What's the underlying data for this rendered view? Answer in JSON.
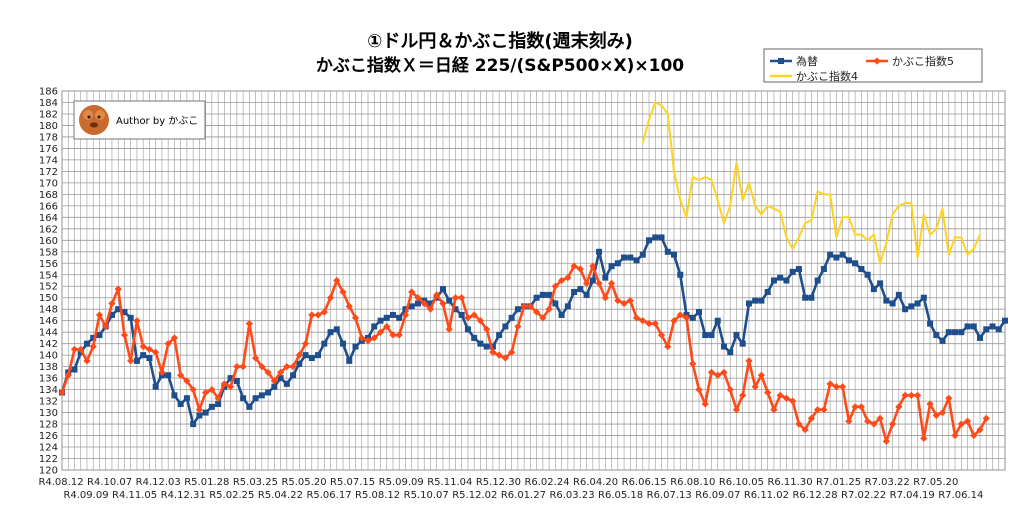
{
  "title_line1": "①ドル円＆かぶこ指数(週末刻み)",
  "title_line2": "かぶこ指数Ｘ＝日経 225/(S&P500×X)×100",
  "author_label": "Author by かぶこ",
  "colors": {
    "usdjpy": "#1f4e8c",
    "kabuko5": "#ff4a1a",
    "kabuko4": "#ffd21f",
    "grid": "#9a9a9a"
  },
  "chart_data": {
    "type": "line",
    "ylim": [
      120,
      186
    ],
    "yticks": [
      120,
      122,
      124,
      126,
      128,
      130,
      132,
      134,
      136,
      138,
      140,
      142,
      144,
      146,
      148,
      150,
      152,
      154,
      156,
      158,
      160,
      162,
      164,
      166,
      168,
      170,
      172,
      174,
      176,
      178,
      180,
      182,
      184,
      186
    ],
    "xlabels_upper": [
      "R4.08.12",
      "R4.10.07",
      "R4.12.03",
      "R5.01.28",
      "R5.03.25",
      "R5.05.20",
      "R5.07.15",
      "R5.09.09",
      "R5.11.04",
      "R5.12.30",
      "R6.02.24",
      "R6.04.20",
      "R6.06.15",
      "R6.08.10",
      "R6.10.05",
      "R6.11.30",
      "R7.01.25",
      "R7.03.22",
      "R7.05.20"
    ],
    "xlabels_lower": [
      "R4.09.09",
      "R4.11.05",
      "R4.12.31",
      "R5.02.25",
      "R5.04.22",
      "R5.06.17",
      "R5.08.12",
      "R5.10.07",
      "R5.12.02",
      "R6.01.27",
      "R6.03.23",
      "R6.05.18",
      "R6.07.13",
      "R6.09.07",
      "R6.11.02",
      "R6.12.28",
      "R7.02.22",
      "R7.04.19",
      "R7.06.14"
    ],
    "legend": [
      "為替",
      "かぶこ指数5",
      "かぶこ指数4"
    ],
    "series": [
      {
        "name": "為替",
        "values": [
          133.5,
          137.0,
          137.5,
          140.5,
          142.0,
          143.0,
          143.5,
          145.0,
          147.0,
          148.0,
          147.5,
          146.5,
          139.0,
          140.0,
          139.5,
          134.5,
          136.5,
          136.5,
          133.0,
          131.5,
          132.5,
          128.0,
          129.5,
          130.0,
          131.0,
          131.5,
          134.5,
          136.0,
          135.5,
          132.5,
          131.0,
          132.5,
          133.0,
          133.5,
          134.5,
          136.0,
          135.0,
          136.5,
          138.5,
          140.0,
          139.5,
          140.0,
          142.0,
          144.0,
          144.5,
          142.0,
          139.0,
          141.5,
          142.5,
          143.0,
          145.0,
          146.0,
          146.5,
          147.0,
          146.5,
          148.0,
          148.5,
          149.0,
          149.5,
          149.0,
          150.0,
          151.5,
          149.5,
          148.0,
          147.0,
          144.5,
          143.0,
          142.0,
          141.5,
          141.5,
          143.5,
          145.0,
          146.5,
          148.0,
          148.5,
          148.5,
          150.0,
          150.5,
          150.5,
          149.0,
          147.0,
          148.5,
          151.0,
          151.5,
          150.5,
          153.0,
          158.0,
          153.5,
          155.5,
          156.0,
          157.0,
          157.0,
          156.5,
          157.5,
          160.0,
          160.5,
          160.5,
          158.0,
          157.5,
          154.0,
          147.0,
          146.5,
          147.5,
          143.5,
          143.5,
          146.0,
          141.5,
          140.5,
          143.5,
          142.0,
          149.0,
          149.5,
          149.5,
          151.0,
          153.0,
          153.5,
          153.0,
          154.5,
          155.0,
          150.0,
          150.0,
          153.0,
          155.0,
          157.5,
          157.0,
          157.5,
          156.5,
          156.0,
          155.0,
          154.0,
          151.5,
          152.5,
          149.5,
          149.0,
          150.5,
          148.0,
          148.5,
          149.0,
          150.0,
          145.5,
          143.5,
          142.5,
          144.0,
          144.0,
          144.0,
          145.0,
          145.0,
          143.0,
          144.5,
          145.0,
          144.5,
          146.0
        ]
      },
      {
        "name": "かぶこ指数5",
        "values": [
          133.5,
          136.5,
          141.0,
          141.0,
          139.0,
          141.5,
          147.0,
          145.0,
          149.0,
          151.5,
          143.5,
          139.0,
          146.0,
          141.5,
          141.0,
          140.5,
          137.0,
          142.0,
          143.0,
          136.5,
          135.5,
          134.0,
          130.5,
          133.5,
          134.0,
          132.5,
          135.0,
          134.5,
          138.0,
          138.0,
          145.5,
          139.5,
          138.0,
          137.0,
          135.5,
          137.0,
          138.0,
          138.0,
          140.0,
          142.0,
          147.0,
          147.0,
          147.5,
          150.0,
          153.0,
          151.0,
          148.5,
          146.5,
          143.0,
          142.5,
          143.0,
          144.0,
          145.0,
          143.5,
          143.5,
          147.0,
          151.0,
          150.0,
          149.0,
          148.0,
          150.5,
          149.0,
          144.5,
          150.0,
          150.0,
          146.5,
          147.0,
          146.0,
          144.5,
          140.5,
          140.0,
          139.5,
          140.5,
          145.0,
          148.5,
          148.5,
          147.5,
          146.5,
          148.0,
          152.0,
          153.0,
          153.5,
          155.5,
          155.0,
          152.5,
          155.5,
          152.5,
          150.0,
          152.5,
          149.5,
          149.0,
          149.5,
          146.5,
          146.0,
          145.5,
          145.5,
          143.5,
          141.5,
          146.0,
          147.0,
          146.5,
          138.5,
          134.0,
          131.5,
          137.0,
          136.5,
          137.0,
          134.0,
          130.5,
          133.0,
          139.0,
          134.5,
          136.5,
          133.5,
          130.5,
          133.0,
          132.5,
          132.0,
          128.0,
          127.0,
          129.0,
          130.5,
          130.5,
          135.0,
          134.5,
          134.5,
          128.5,
          131.0,
          131.0,
          128.5,
          128.0,
          129.0,
          125.0,
          128.0,
          131.0,
          133.0,
          133.0,
          133.0,
          125.5,
          131.5,
          129.5,
          130.0,
          132.5,
          126.0,
          128.0,
          128.5,
          126.0,
          127.0,
          129.0
        ]
      },
      {
        "name": "かぶこ指数4",
        "start_index": 93,
        "values": [
          177.0,
          181.0,
          184.0,
          183.5,
          182.0,
          172.0,
          167.0,
          164.0,
          171.0,
          170.5,
          171.0,
          170.5,
          167.0,
          163.0,
          166.0,
          173.5,
          167.0,
          170.0,
          166.0,
          164.5,
          166.0,
          165.5,
          165.0,
          160.5,
          158.5,
          160.5,
          163.0,
          163.5,
          168.5,
          168.0,
          168.0,
          160.5,
          164.0,
          164.0,
          161.0,
          161.0,
          160.0,
          161.0,
          156.0,
          159.5,
          164.5,
          166.0,
          166.5,
          166.5,
          157.0,
          164.5,
          161.0,
          162.0,
          165.5,
          157.5,
          160.5,
          160.5,
          157.5,
          158.5,
          161.0
        ]
      }
    ]
  }
}
